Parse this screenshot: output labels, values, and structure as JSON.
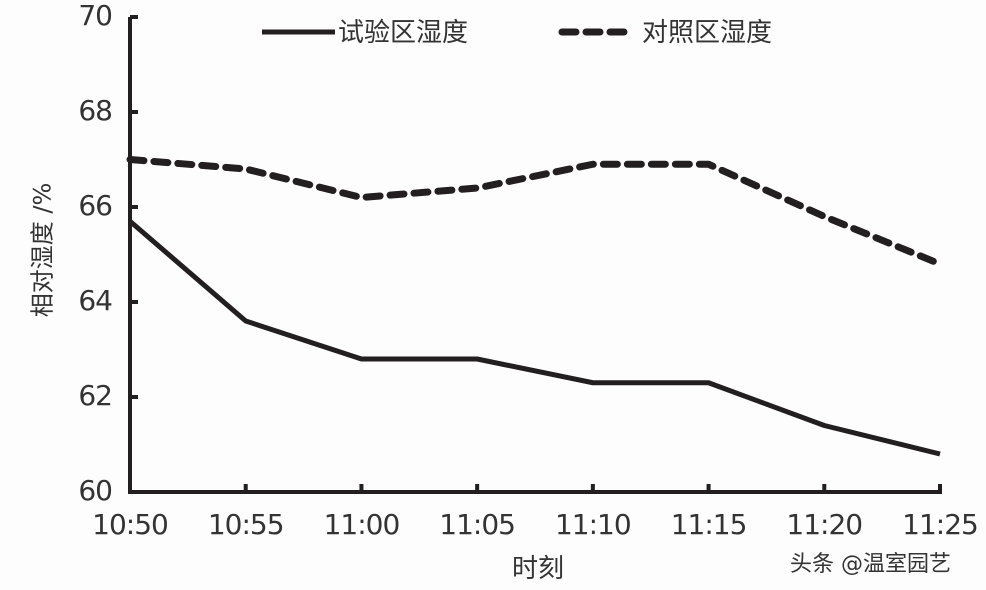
{
  "chart_data": {
    "type": "line",
    "title": "",
    "xlabel": "时刻",
    "ylabel": "相对湿度 /%",
    "categories": [
      "10:50",
      "10:55",
      "11:00",
      "11:05",
      "11:10",
      "11:15",
      "11:20",
      "11:25"
    ],
    "series": [
      {
        "name": "试验区湿度",
        "style": "solid",
        "values": [
          65.7,
          63.6,
          62.8,
          62.8,
          62.3,
          62.3,
          61.4,
          60.8
        ]
      },
      {
        "name": "对照区湿度",
        "style": "dashed",
        "values": [
          67.0,
          66.8,
          66.2,
          66.4,
          66.9,
          66.9,
          65.8,
          64.8
        ]
      }
    ],
    "yticks": [
      "60",
      "62",
      "64",
      "66",
      "68",
      "70"
    ],
    "ylim": [
      60,
      70
    ],
    "grid": false,
    "legend_position": "top"
  },
  "legend": {
    "solid_label": "试验区湿度",
    "dashed_label": "对照区湿度"
  },
  "axes": {
    "xlabel": "时刻",
    "ylabel": "相对湿度 /%"
  },
  "watermark": "头条 @温室园艺",
  "colors": {
    "line": "#231f20",
    "background": "#fdfdfd"
  }
}
